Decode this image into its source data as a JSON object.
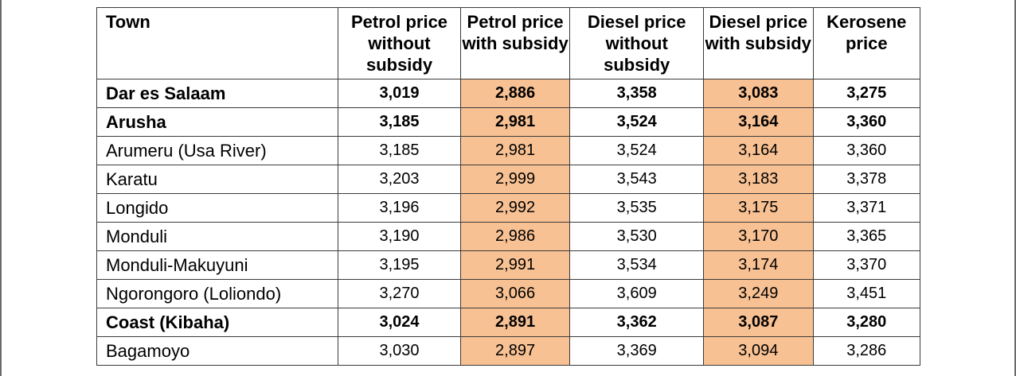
{
  "table": {
    "headers": {
      "town": "Town",
      "petrol_without": "Petrol price without subsidy",
      "petrol_with": "Petrol price with subsidy",
      "diesel_without": "Diesel price without subsidy",
      "diesel_with": "Diesel price with subsidy",
      "kerosene": "Kerosene price"
    },
    "highlight_color": "#f8c193",
    "rows": [
      {
        "town": "Dar es Salaam",
        "bold": true,
        "petrol_without": "3,019",
        "petrol_with": "2,886",
        "diesel_without": "3,358",
        "diesel_with": "3,083",
        "kerosene": "3,275"
      },
      {
        "town": "Arusha",
        "bold": true,
        "petrol_without": "3,185",
        "petrol_with": "2,981",
        "diesel_without": "3,524",
        "diesel_with": "3,164",
        "kerosene": "3,360"
      },
      {
        "town": "Arumeru (Usa River)",
        "bold": false,
        "petrol_without": "3,185",
        "petrol_with": "2,981",
        "diesel_without": "3,524",
        "diesel_with": "3,164",
        "kerosene": "3,360"
      },
      {
        "town": "Karatu",
        "bold": false,
        "petrol_without": "3,203",
        "petrol_with": "2,999",
        "diesel_without": "3,543",
        "diesel_with": "3,183",
        "kerosene": "3,378"
      },
      {
        "town": "Longido",
        "bold": false,
        "petrol_without": "3,196",
        "petrol_with": "2,992",
        "diesel_without": "3,535",
        "diesel_with": "3,175",
        "kerosene": "3,371"
      },
      {
        "town": "Monduli",
        "bold": false,
        "petrol_without": "3,190",
        "petrol_with": "2,986",
        "diesel_without": "3,530",
        "diesel_with": "3,170",
        "kerosene": "3,365"
      },
      {
        "town": "Monduli-Makuyuni",
        "bold": false,
        "petrol_without": "3,195",
        "petrol_with": "2,991",
        "diesel_without": "3,534",
        "diesel_with": "3,174",
        "kerosene": "3,370"
      },
      {
        "town": "Ngorongoro (Loliondo)",
        "bold": false,
        "petrol_without": "3,270",
        "petrol_with": "3,066",
        "diesel_without": "3,609",
        "diesel_with": "3,249",
        "kerosene": "3,451"
      },
      {
        "town": "Coast (Kibaha)",
        "bold": true,
        "petrol_without": "3,024",
        "petrol_with": "2,891",
        "diesel_without": "3,362",
        "diesel_with": "3,087",
        "kerosene": "3,280"
      },
      {
        "town": "Bagamoyo",
        "bold": false,
        "petrol_without": "3,030",
        "petrol_with": "2,897",
        "diesel_without": "3,369",
        "diesel_with": "3,094",
        "kerosene": "3,286"
      }
    ]
  }
}
